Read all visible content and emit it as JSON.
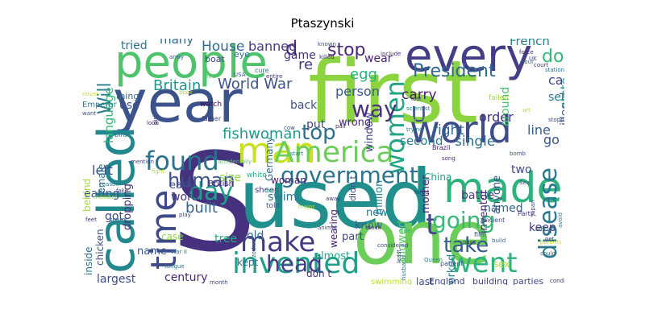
{
  "title": "Ptaszynski",
  "words": [
    {
      "t": "first",
      "c": "#8cd43f"
    },
    {
      "t": "S",
      "c": "#46317e"
    },
    {
      "t": "used",
      "c": "#21908c"
    },
    {
      "t": "one",
      "c": "#6ccd5a"
    },
    {
      "t": "year",
      "c": "#3b528b"
    },
    {
      "t": "people",
      "c": "#4ec36b"
    },
    {
      "t": "every",
      "c": "#433e85"
    },
    {
      "t": "called",
      "c": "#23888e"
    },
    {
      "t": "world",
      "c": "#3e4c8a"
    },
    {
      "t": "man",
      "c": "#c8e020"
    },
    {
      "t": "America",
      "c": "#6ccd5a"
    },
    {
      "t": "made",
      "c": "#2db27d"
    },
    {
      "t": "time",
      "c": "#3e4989"
    },
    {
      "t": "invented",
      "c": "#1f9e89"
    },
    {
      "t": "make",
      "c": "#443a83"
    },
    {
      "t": "went",
      "c": "#2db27d"
    },
    {
      "t": "found",
      "c": "#2c728e"
    },
    {
      "t": "day",
      "c": "#1fa088"
    },
    {
      "t": "women",
      "c": "#21a585"
    },
    {
      "t": "government",
      "c": "#2c738e"
    },
    {
      "t": "way",
      "c": "#46327e"
    },
    {
      "t": "t",
      "c": "#404387"
    },
    {
      "t": "going",
      "c": "#37b878"
    },
    {
      "t": "disease",
      "c": "#2a788e"
    },
    {
      "t": "head",
      "c": "#433e85"
    },
    {
      "t": "take",
      "c": "#375a8c"
    },
    {
      "t": "human",
      "c": "#3b518b"
    },
    {
      "t": "top",
      "c": "#2e6e8e"
    },
    {
      "t": "stop",
      "c": "#482878"
    },
    {
      "t": "dog",
      "c": "#35b779"
    },
    {
      "t": "President",
      "c": "#31688e"
    },
    {
      "t": "fishwoman",
      "c": "#1f9a8a"
    },
    {
      "t": "U",
      "c": "#3e4a89"
    },
    {
      "t": "World War",
      "c": "#3b528b"
    },
    {
      "t": "Will",
      "c": "#287c8e"
    },
    {
      "t": "Britain",
      "c": "#1f968b"
    },
    {
      "t": "House",
      "c": "#31688e"
    },
    {
      "t": "banned",
      "c": "#453882"
    },
    {
      "t": "d",
      "c": "#472e7c"
    },
    {
      "t": "game",
      "c": "#46337f"
    },
    {
      "t": "egg",
      "c": "#2ab07f"
    },
    {
      "t": "re",
      "c": "#443983"
    },
    {
      "t": "many",
      "c": "#2e6f8e"
    },
    {
      "t": "tried",
      "c": "#2d718e"
    },
    {
      "t": "language",
      "c": "#35b779"
    },
    {
      "t": "French",
      "c": "#26828e"
    },
    {
      "t": "car",
      "c": "#3f4788"
    },
    {
      "t": "person",
      "c": "#38588c"
    },
    {
      "t": "carry",
      "c": "#482071"
    },
    {
      "t": "right",
      "c": "#31678e"
    },
    {
      "t": "left",
      "c": "#3e4c8a"
    },
    {
      "t": "use",
      "c": "#3d4e8a"
    },
    {
      "t": "built",
      "c": "#34608d"
    },
    {
      "t": "eating",
      "c": "#3a548c"
    },
    {
      "t": "word",
      "c": "#453581"
    },
    {
      "t": "swim",
      "c": "#2a788e"
    },
    {
      "t": "size",
      "c": "#90d743"
    },
    {
      "t": "early",
      "c": "#3e4a89"
    },
    {
      "t": "tree",
      "c": "#26ad81"
    },
    {
      "t": "kept",
      "c": "#2c738e"
    },
    {
      "t": "old",
      "c": "#2e6e8e"
    },
    {
      "t": "name",
      "c": "#39558c"
    },
    {
      "t": "largest",
      "c": "#3e4c8a"
    },
    {
      "t": "century",
      "c": "#482878"
    },
    {
      "t": "case",
      "c": "#8bd646"
    },
    {
      "t": "got",
      "c": "#3f4889"
    },
    {
      "t": "order",
      "c": "#46307e"
    },
    {
      "t": "single",
      "c": "#2e6f8e"
    },
    {
      "t": "second",
      "c": "#297a8e"
    },
    {
      "t": "wear",
      "c": "#481b6d"
    },
    {
      "t": "back",
      "c": "#3a538b"
    },
    {
      "t": "put",
      "c": "#3f4889"
    },
    {
      "t": "line",
      "c": "#355f8d"
    },
    {
      "t": "go",
      "c": "#3b528b"
    },
    {
      "t": "illegal",
      "c": "#3a548c"
    },
    {
      "t": "state",
      "c": "#1f9f88"
    },
    {
      "t": "sent",
      "c": "#29798e"
    },
    {
      "t": "around",
      "c": "#4ac16d"
    },
    {
      "t": "window",
      "c": "#404588"
    },
    {
      "t": "battle",
      "c": "#443b84"
    },
    {
      "t": "named",
      "c": "#33638d"
    },
    {
      "t": "mother",
      "c": "#482475"
    },
    {
      "t": "keep",
      "c": "#46337f"
    },
    {
      "t": "two",
      "c": "#3e4a89"
    },
    {
      "t": "know",
      "c": "#355e8d"
    },
    {
      "t": "part",
      "c": "#3f4788"
    },
    {
      "t": "almost",
      "c": "#22a884"
    },
    {
      "t": "don t",
      "c": "#46307e"
    },
    {
      "t": "new",
      "c": "#2a768e"
    },
    {
      "t": "last",
      "c": "#3c4f8a"
    },
    {
      "t": "worked",
      "c": "#26828e"
    },
    {
      "t": "inventor",
      "c": "#472c7a"
    },
    {
      "t": "anyone",
      "c": "#3b528b"
    },
    {
      "t": "wrong",
      "c": "#482878"
    },
    {
      "t": "million",
      "c": "#23888e"
    },
    {
      "t": "allowed",
      "c": "#5ec962"
    },
    {
      "t": "England",
      "c": "#3f4788"
    },
    {
      "t": "building",
      "c": "#404387"
    },
    {
      "t": "parties",
      "c": "#3e4989"
    },
    {
      "t": "swimming",
      "c": "#c2df23"
    },
    {
      "t": "sex",
      "c": "#b5de2b"
    },
    {
      "t": "China",
      "c": "#1fa088"
    },
    {
      "t": "wearing",
      "c": "#482576"
    },
    {
      "t": "chicken",
      "c": "#3a538b"
    },
    {
      "t": "inside",
      "c": "#2e6f8e"
    },
    {
      "t": "behind",
      "c": "#a5db36"
    },
    {
      "t": "female",
      "c": "#2c718e"
    },
    {
      "t": "dropping",
      "c": "#472f7d"
    },
    {
      "t": "Germany",
      "c": "#2c728e"
    },
    {
      "t": "didn t",
      "c": "#3b528b"
    },
    {
      "t": "thing",
      "c": "#31688e"
    },
    {
      "t": "woman",
      "c": "#482071"
    },
    {
      "t": "eye",
      "c": "#2d718e"
    },
    {
      "t": "boat",
      "c": "#3e4989"
    },
    {
      "t": "Emperor",
      "c": "#26828e"
    },
    {
      "t": "British",
      "c": "#482374"
    },
    {
      "t": "sheep",
      "c": "#453882"
    },
    {
      "t": "white",
      "c": "#29af7f"
    },
    {
      "t": "told",
      "c": "#3a548c"
    },
    {
      "t": "watch",
      "c": "#440154"
    },
    {
      "t": "father",
      "c": "#3f4788"
    },
    {
      "t": "cure",
      "c": "#2a788e"
    },
    {
      "t": "killed",
      "c": "#482777"
    },
    {
      "t": "known",
      "c": "#3b528b"
    },
    {
      "t": "force",
      "c": "#482878"
    },
    {
      "t": "hour",
      "c": "#31688e"
    },
    {
      "t": "UK",
      "c": "#3f4788"
    },
    {
      "t": "court",
      "c": "#472d7b"
    },
    {
      "t": "station",
      "c": "#2c728e"
    },
    {
      "t": "include",
      "c": "#46327e"
    },
    {
      "t": "failed",
      "c": "#a0da39"
    },
    {
      "t": "stopped",
      "c": "#3e4a89"
    },
    {
      "t": "Brazil",
      "c": "#482475"
    },
    {
      "t": "Ancient",
      "c": "#3e4c8a"
    },
    {
      "t": "Party",
      "c": "#46327e"
    },
    {
      "t": "official",
      "c": "#2d708e"
    },
    {
      "t": "pet",
      "c": "#414487"
    },
    {
      "t": "patient",
      "c": "#3b528b"
    },
    {
      "t": "husband",
      "c": "#2a788e"
    },
    {
      "t": "Queen",
      "c": "#26828e"
    },
    {
      "t": "condition",
      "c": "#46327e"
    },
    {
      "t": "pass",
      "c": "#472f7d"
    },
    {
      "t": "stuck",
      "c": "#482576"
    },
    {
      "t": "considered",
      "c": "#3e4a89"
    },
    {
      "t": "trying",
      "c": "#2a788e"
    },
    {
      "t": "Great",
      "c": "#21a685"
    },
    {
      "t": "army",
      "c": "#3b528b"
    },
    {
      "t": "fire",
      "c": "#5ec962"
    },
    {
      "t": "book",
      "c": "#addc30"
    },
    {
      "t": "girl",
      "c": "#3f4788"
    },
    {
      "t": "bird",
      "c": "#2c728e"
    },
    {
      "t": "look",
      "c": "#482475"
    },
    {
      "t": "want",
      "c": "#3b528b"
    },
    {
      "t": "mention",
      "c": "#3e4c8a"
    },
    {
      "t": "reason",
      "c": "#2a788e"
    },
    {
      "t": "fake",
      "c": "#414487"
    },
    {
      "t": "member",
      "c": "#90d743"
    },
    {
      "t": "feet",
      "c": "#472d7b"
    },
    {
      "t": "sperm",
      "c": "#31688e"
    },
    {
      "t": "play",
      "c": "#3e4989"
    },
    {
      "t": "gun",
      "c": "#482878"
    },
    {
      "t": "War II",
      "c": "#2d708e"
    },
    {
      "t": "tongue",
      "c": "#2a788e"
    },
    {
      "t": "month",
      "c": "#3e4a89"
    },
    {
      "t": "novel",
      "c": "#c8e020"
    },
    {
      "t": "fight",
      "c": "#b5de2b"
    },
    {
      "t": "entire",
      "c": "#46327e"
    },
    {
      "t": "USA",
      "c": "#3b528b"
    },
    {
      "t": "pair",
      "c": "#482475"
    },
    {
      "t": "cow",
      "c": "#3f4788"
    },
    {
      "t": "lost",
      "c": "#3e4989"
    },
    {
      "t": "scientist",
      "c": "#26828e"
    },
    {
      "t": "queen",
      "c": "#8bd646"
    },
    {
      "t": "film",
      "c": "#3b528b"
    },
    {
      "t": "build",
      "c": "#2d708e"
    },
    {
      "t": "hired",
      "c": "#482878"
    },
    {
      "t": "animal",
      "c": "#3f4788"
    },
    {
      "t": "major",
      "c": "#addc30"
    },
    {
      "t": "away",
      "c": "#46327e"
    },
    {
      "t": "Japan",
      "c": "#3e4a89"
    },
    {
      "t": "avoid",
      "c": "#2a788e"
    },
    {
      "t": "bomb",
      "c": "#3b528b"
    },
    {
      "t": "Sea",
      "c": "#414487"
    },
    {
      "t": "parents",
      "c": "#c8e020"
    },
    {
      "t": "could",
      "c": "#2c728e"
    },
    {
      "t": "art",
      "c": "#addc30"
    },
    {
      "t": "ride",
      "c": "#35b779"
    },
    {
      "t": "least",
      "c": "#3e4c8a"
    },
    {
      "t": "zodiac",
      "c": "#31688e"
    },
    {
      "t": "accidentally",
      "c": "#5ec962"
    },
    {
      "t": "start",
      "c": "#2a788e"
    },
    {
      "t": "song",
      "c": "#472d7b"
    }
  ]
}
